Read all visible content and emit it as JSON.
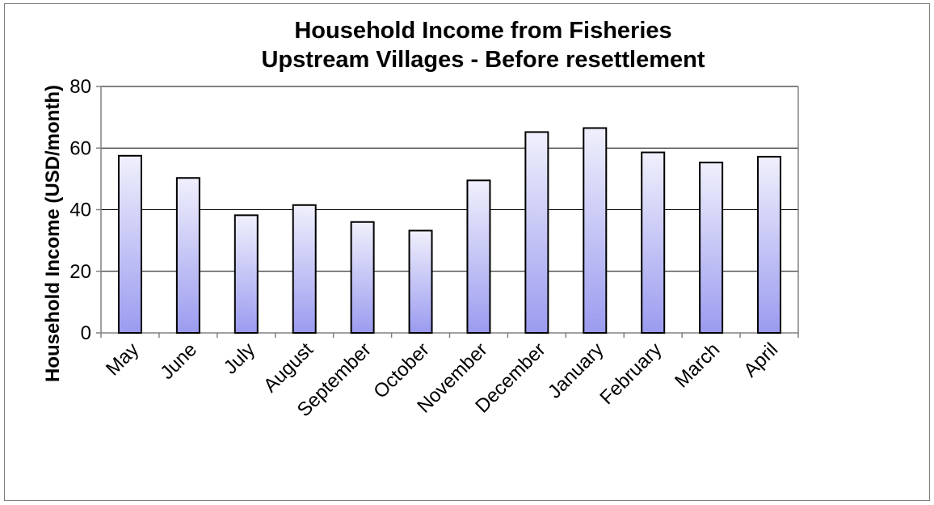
{
  "chart_data": {
    "type": "bar",
    "title": "Household Income from Fisheries",
    "subtitle": "Upstream Villages - Before resettlement",
    "xlabel": "",
    "ylabel": "Household Income (USD/month)",
    "categories": [
      "May",
      "June",
      "July",
      "August",
      "September",
      "October",
      "November",
      "December",
      "January",
      "February",
      "March",
      "April"
    ],
    "values": [
      57.5,
      50.3,
      38.2,
      41.5,
      36.0,
      33.2,
      49.5,
      65.2,
      66.5,
      58.6,
      55.3,
      57.2
    ],
    "ylim": [
      0,
      80
    ],
    "yticks": [
      0,
      20,
      40,
      60,
      80
    ],
    "grid": true,
    "legend": "none",
    "colors": {
      "bar_fill_top": "#f0f0fc",
      "bar_fill_bottom": "#9b9bf0",
      "bar_stroke": "#000000",
      "gridline": "#000000",
      "axis": "#808080"
    }
  }
}
